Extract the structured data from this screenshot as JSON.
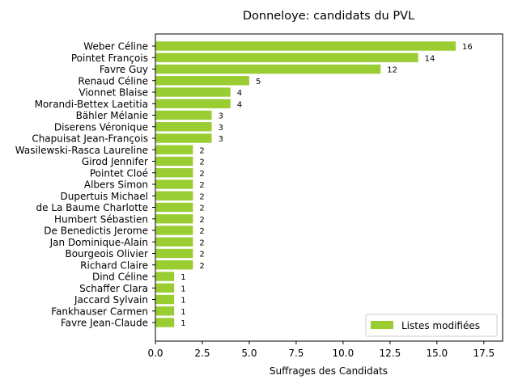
{
  "chart_data": {
    "type": "bar",
    "orientation": "horizontal",
    "title": "Donneloye: candidats du PVL",
    "xlabel": "Suffrages des Candidats",
    "ylabel": "",
    "xlim": [
      0,
      18.5
    ],
    "xticks": [
      "0.0",
      "2.5",
      "5.0",
      "7.5",
      "10.0",
      "12.5",
      "15.0",
      "17.5"
    ],
    "xtick_values": [
      0,
      2.5,
      5,
      7.5,
      10,
      12.5,
      15,
      17.5
    ],
    "grid": false,
    "legend_position": "lower-right",
    "bar_color": "#9acd32",
    "categories": [
      "Weber Céline",
      "Pointet François",
      "Favre Guy",
      "Renaud Céline",
      "Vionnet Blaise",
      "Morandi-Bettex Laetitia",
      "Bähler Mélanie",
      "Diserens Véronique",
      "Chapuisat Jean-François",
      "Wasilewski-Rasca Laureline",
      "Girod Jennifer",
      "Pointet Cloé",
      "Albers Simon",
      "Dupertuis Michael",
      "de La Baume Charlotte",
      "Humbert Sébastien",
      "De Benedictis Jerome",
      "Jan Dominique-Alain",
      "Bourgeois Olivier",
      "Richard Claire",
      "Dind Céline",
      "Schaffer Clara",
      "Jaccard Sylvain",
      "Fankhauser Carmen",
      "Favre Jean-Claude"
    ],
    "series": [
      {
        "name": "Listes modifiées",
        "values": [
          16,
          14,
          12,
          5,
          4,
          4,
          3,
          3,
          3,
          2,
          2,
          2,
          2,
          2,
          2,
          2,
          2,
          2,
          2,
          2,
          1,
          1,
          1,
          1,
          1
        ]
      }
    ]
  }
}
